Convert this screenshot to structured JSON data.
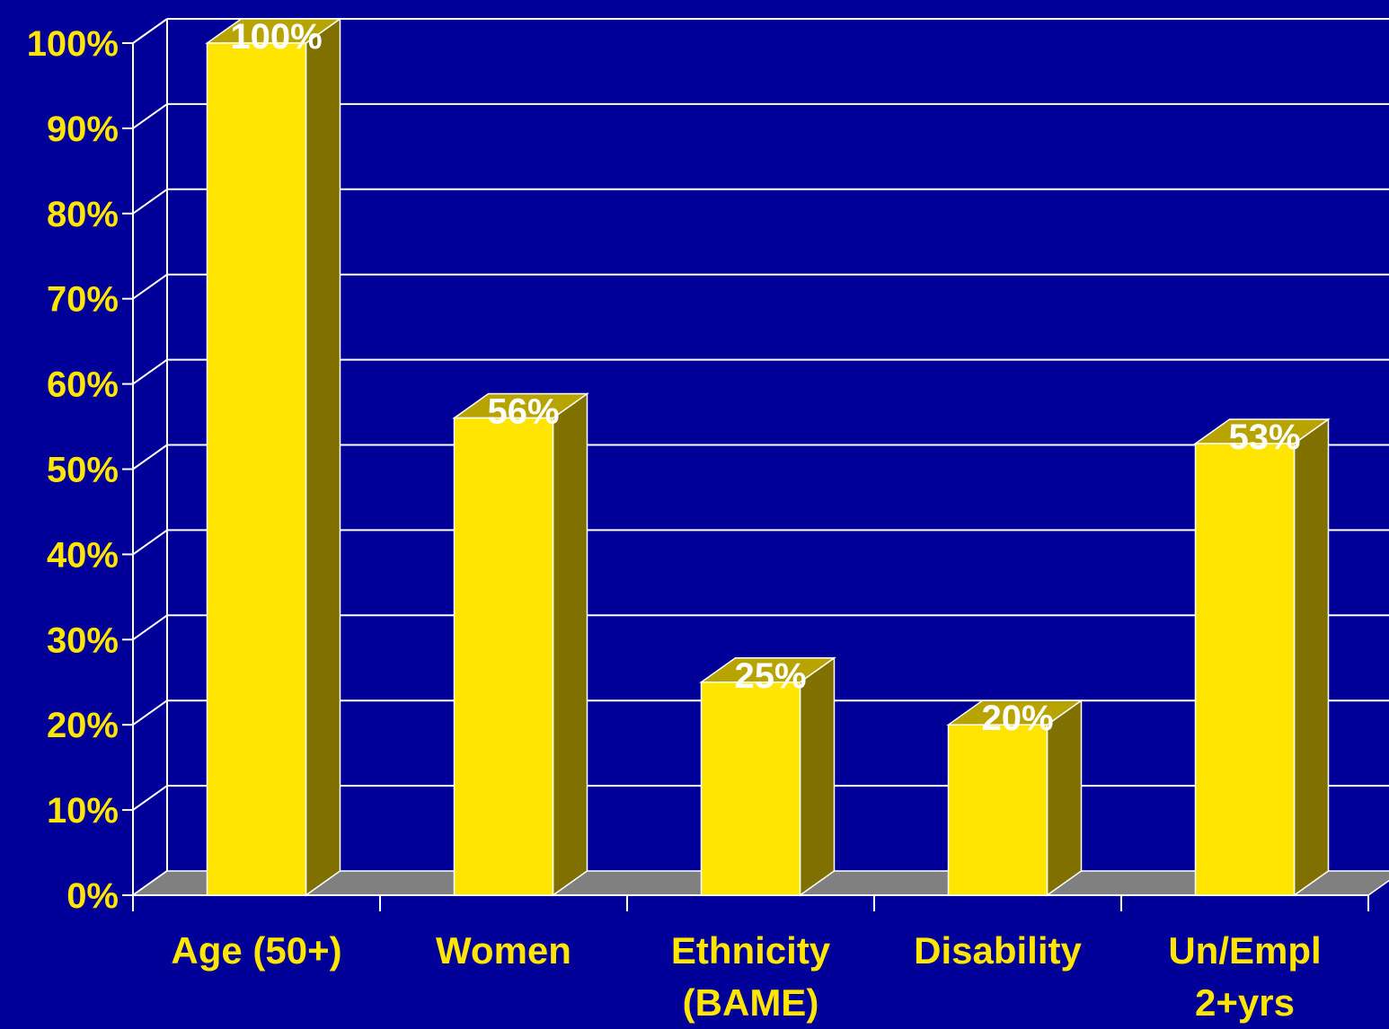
{
  "chart_data": {
    "type": "bar",
    "categories": [
      [
        "Age (50+)"
      ],
      [
        "Women"
      ],
      [
        "Ethnicity",
        "(BAME)"
      ],
      [
        "Disability"
      ],
      [
        "Un/Empl",
        "2+yrs"
      ]
    ],
    "values": [
      100,
      56,
      25,
      20,
      53
    ],
    "data_labels": [
      "100%",
      "56%",
      "25%",
      "20%",
      "53%"
    ],
    "y_ticks": [
      "0%",
      "10%",
      "20%",
      "30%",
      "40%",
      "50%",
      "60%",
      "70%",
      "80%",
      "90%",
      "100%"
    ],
    "ylim": [
      0,
      100
    ],
    "grid": true,
    "three_d": true,
    "legend": "none"
  },
  "colors": {
    "background": "#000099",
    "bar_front": "#FFE500",
    "bar_side": "#807000",
    "bar_top": "#B8A400",
    "floor": "#808080",
    "gridline": "#FFFFFF",
    "axis_text": "#FFE500",
    "data_label": "#FFFFFF"
  }
}
